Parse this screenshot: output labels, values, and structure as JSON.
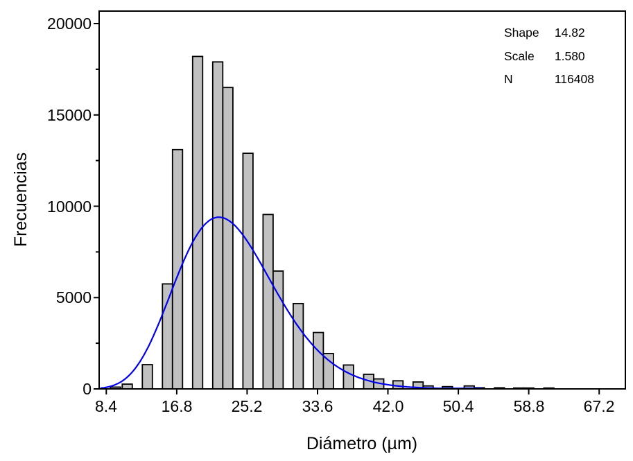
{
  "chart_data": {
    "type": "bar",
    "subtype": "histogram-with-fit",
    "title": "",
    "xlabel": "Diámetro (µm)",
    "ylabel": "Frecuencias",
    "x_tick_labels": [
      "8.4",
      "16.8",
      "25.2",
      "33.6",
      "42.0",
      "50.4",
      "58.8",
      "67.2"
    ],
    "x_ticks": [
      8.4,
      16.8,
      25.2,
      33.6,
      42.0,
      50.4,
      58.8,
      67.2
    ],
    "y_tick_labels": [
      "0",
      "5000",
      "10000",
      "15000",
      "20000"
    ],
    "y_ticks": [
      0,
      5000,
      10000,
      15000,
      20000
    ],
    "y_minor_tick_step": 2500,
    "xlim": [
      7.55,
      70.3
    ],
    "ylim": [
      0,
      20680
    ],
    "grid": false,
    "bin_width_um": 1.2,
    "bars": [
      {
        "x": 9.5,
        "freq": 100
      },
      {
        "x": 10.9,
        "freq": 260
      },
      {
        "x": 13.3,
        "freq": 1330
      },
      {
        "x": 15.7,
        "freq": 5750
      },
      {
        "x": 16.9,
        "freq": 13100
      },
      {
        "x": 19.3,
        "freq": 18200
      },
      {
        "x": 21.7,
        "freq": 17900
      },
      {
        "x": 22.9,
        "freq": 16500
      },
      {
        "x": 25.3,
        "freq": 12900
      },
      {
        "x": 27.7,
        "freq": 9550
      },
      {
        "x": 28.9,
        "freq": 6450
      },
      {
        "x": 31.3,
        "freq": 4670
      },
      {
        "x": 33.7,
        "freq": 3090
      },
      {
        "x": 34.9,
        "freq": 1940
      },
      {
        "x": 37.3,
        "freq": 1310
      },
      {
        "x": 39.7,
        "freq": 800
      },
      {
        "x": 40.9,
        "freq": 545
      },
      {
        "x": 43.2,
        "freq": 445
      },
      {
        "x": 45.6,
        "freq": 380
      },
      {
        "x": 46.8,
        "freq": 165
      },
      {
        "x": 49.1,
        "freq": 125
      },
      {
        "x": 51.7,
        "freq": 165
      },
      {
        "x": 52.9,
        "freq": 65
      },
      {
        "x": 55.3,
        "freq": 60
      },
      {
        "x": 57.6,
        "freq": 50
      },
      {
        "x": 58.8,
        "freq": 50
      },
      {
        "x": 61.2,
        "freq": 50
      }
    ],
    "fit_curve": {
      "distribution": "gamma",
      "shape": 14.82,
      "scale": 1.58,
      "peak_height": 9400,
      "x_start": 7.7,
      "x_end": 53.4,
      "color": "#0000ee"
    },
    "legend": {
      "position": "top-right",
      "rows": [
        {
          "label": "Shape",
          "value": "14.82"
        },
        {
          "label": "Scale",
          "value": "1.580"
        },
        {
          "label": "N",
          "value": "116408"
        }
      ]
    },
    "colors": {
      "bar_fill": "#c1c1c1",
      "bar_stroke": "#000000",
      "axis": "#000000",
      "background": "#ffffff"
    }
  }
}
